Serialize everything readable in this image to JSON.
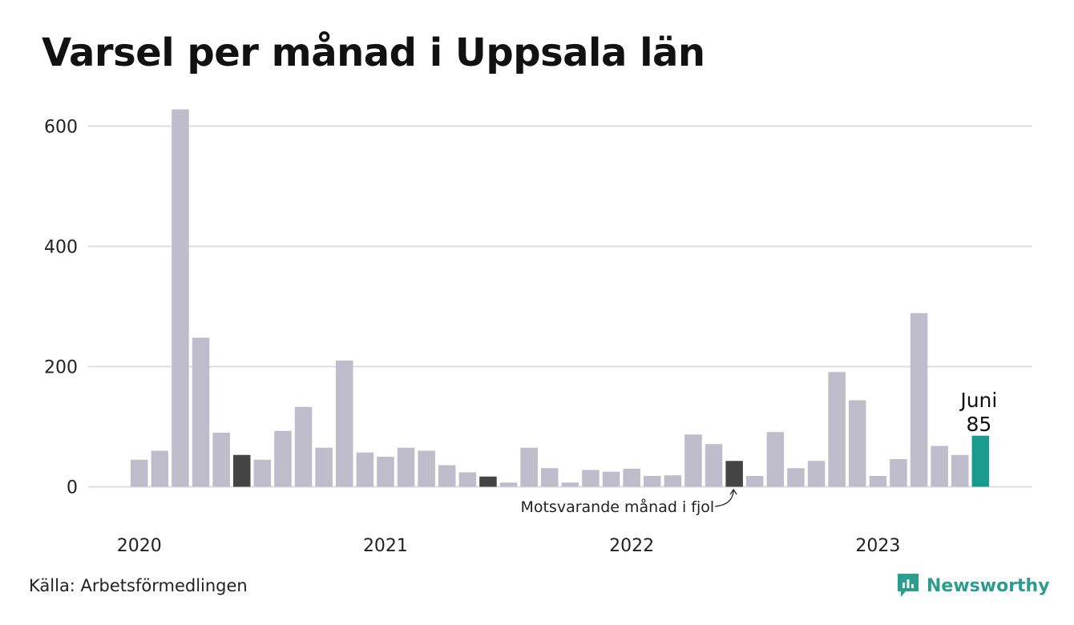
{
  "title": "Varsel per månad i Uppsala län",
  "source": "Källa: Arbetsförmedlingen",
  "logo_text": "Newsworthy",
  "colors": {
    "default": "#bfbccb",
    "same_month_last_year": "#444444",
    "current": "#1a9a8c",
    "gridline": "#dddddd",
    "brand": "#2a9d8f"
  },
  "chart_data": {
    "type": "bar",
    "title": "Varsel per månad i Uppsala län",
    "xlabel": "",
    "ylabel": "",
    "ylim": [
      0,
      650
    ],
    "yticks": [
      0,
      200,
      400,
      600
    ],
    "grid": true,
    "year_labels": [
      "2020",
      "2021",
      "2022",
      "2023"
    ],
    "categories": [
      "2020-01",
      "2020-02",
      "2020-03",
      "2020-04",
      "2020-05",
      "2020-06",
      "2020-07",
      "2020-08",
      "2020-09",
      "2020-10",
      "2020-11",
      "2020-12",
      "2021-01",
      "2021-02",
      "2021-03",
      "2021-04",
      "2021-05",
      "2021-06",
      "2021-07",
      "2021-08",
      "2021-09",
      "2021-10",
      "2021-11",
      "2021-12",
      "2022-01",
      "2022-02",
      "2022-03",
      "2022-04",
      "2022-05",
      "2022-06",
      "2022-07",
      "2022-08",
      "2022-09",
      "2022-10",
      "2022-11",
      "2022-12",
      "2023-01",
      "2023-02",
      "2023-03",
      "2023-04",
      "2023-05",
      "2023-06"
    ],
    "values": [
      45,
      60,
      628,
      248,
      90,
      53,
      45,
      93,
      133,
      65,
      210,
      57,
      50,
      65,
      60,
      36,
      24,
      17,
      7,
      65,
      31,
      7,
      28,
      25,
      30,
      18,
      19,
      87,
      71,
      43,
      18,
      91,
      31,
      43,
      191,
      144,
      18,
      46,
      289,
      68,
      53,
      85
    ],
    "same_month_last_year_indices": [
      5,
      17,
      29
    ],
    "current_index": 41,
    "annotations": {
      "last_year_label": "Motsvarande månad i fjol",
      "current_month": "Juni",
      "current_value": "85"
    }
  }
}
